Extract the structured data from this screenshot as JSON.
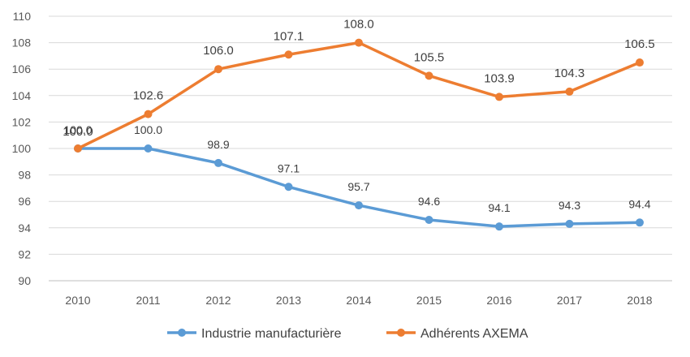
{
  "chart_data": {
    "type": "line",
    "title": "",
    "xlabel": "",
    "ylabel": "",
    "x": [
      "2010",
      "2011",
      "2012",
      "2013",
      "2014",
      "2015",
      "2016",
      "2017",
      "2018"
    ],
    "ylim": [
      90,
      110
    ],
    "y_ticks": [
      "90",
      "92",
      "94",
      "96",
      "98",
      "100",
      "102",
      "104",
      "106",
      "108",
      "110"
    ],
    "grid": true,
    "legend_position": "bottom",
    "series": [
      {
        "name": "Industrie manufacturière",
        "color": "#5b9bd5",
        "values": [
          100.0,
          100.0,
          98.9,
          97.1,
          95.7,
          94.6,
          94.1,
          94.3,
          94.4
        ],
        "labels": [
          "100.0",
          "100.0",
          "98.9",
          "97.1",
          "95.7",
          "94.6",
          "94.1",
          "94.3",
          "94.4"
        ]
      },
      {
        "name": "Adhérents AXEMA",
        "color": "#ed7d31",
        "values": [
          100.0,
          102.6,
          106.0,
          107.1,
          108.0,
          105.5,
          103.9,
          104.3,
          106.5
        ],
        "labels": [
          "100.0",
          "102.6",
          "106.0",
          "107.1",
          "108.0",
          "105.5",
          "103.9",
          "104.3",
          "106.5"
        ]
      }
    ]
  }
}
